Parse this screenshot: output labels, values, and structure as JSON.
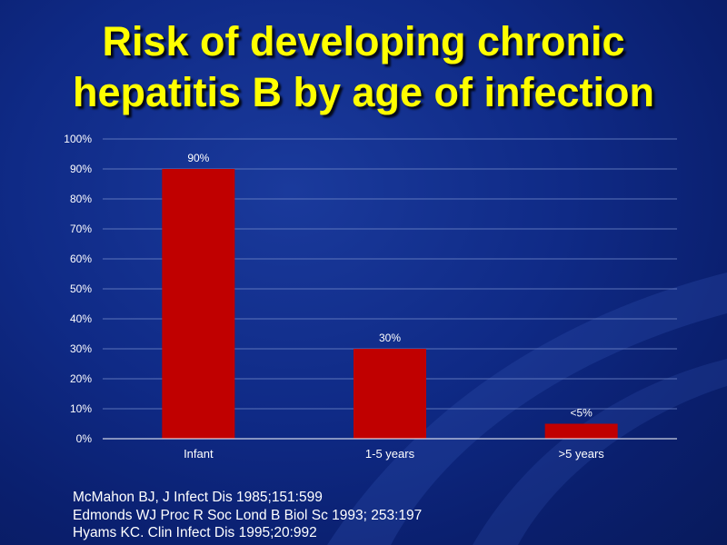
{
  "slide": {
    "title_line1": "Risk of developing chronic",
    "title_line2": "hepatitis B by age of infection",
    "references": [
      "McMahon BJ, J Infect Dis 1985;151:599",
      "Edmonds WJ Proc R Soc Lond B Biol Sc 1993; 253:197",
      "Hyams KC. Clin Infect Dis 1995;20:992"
    ]
  },
  "colors": {
    "background": "#0f2a86",
    "title": "#ffff00",
    "bar": "#c00000",
    "text": "#ffffff",
    "grid": "#6f86c8"
  },
  "chart_data": {
    "type": "bar",
    "categories": [
      "Infant",
      "1-5 years",
      ">5 years"
    ],
    "values": [
      90,
      30,
      5
    ],
    "data_labels": [
      "90%",
      "30%",
      "<5%"
    ],
    "y_ticks": [
      "0%",
      "10%",
      "20%",
      "30%",
      "40%",
      "50%",
      "60%",
      "70%",
      "80%",
      "90%",
      "100%"
    ],
    "ylim": [
      0,
      100
    ],
    "title": "",
    "xlabel": "",
    "ylabel": "",
    "grid": true,
    "legend": "none"
  }
}
